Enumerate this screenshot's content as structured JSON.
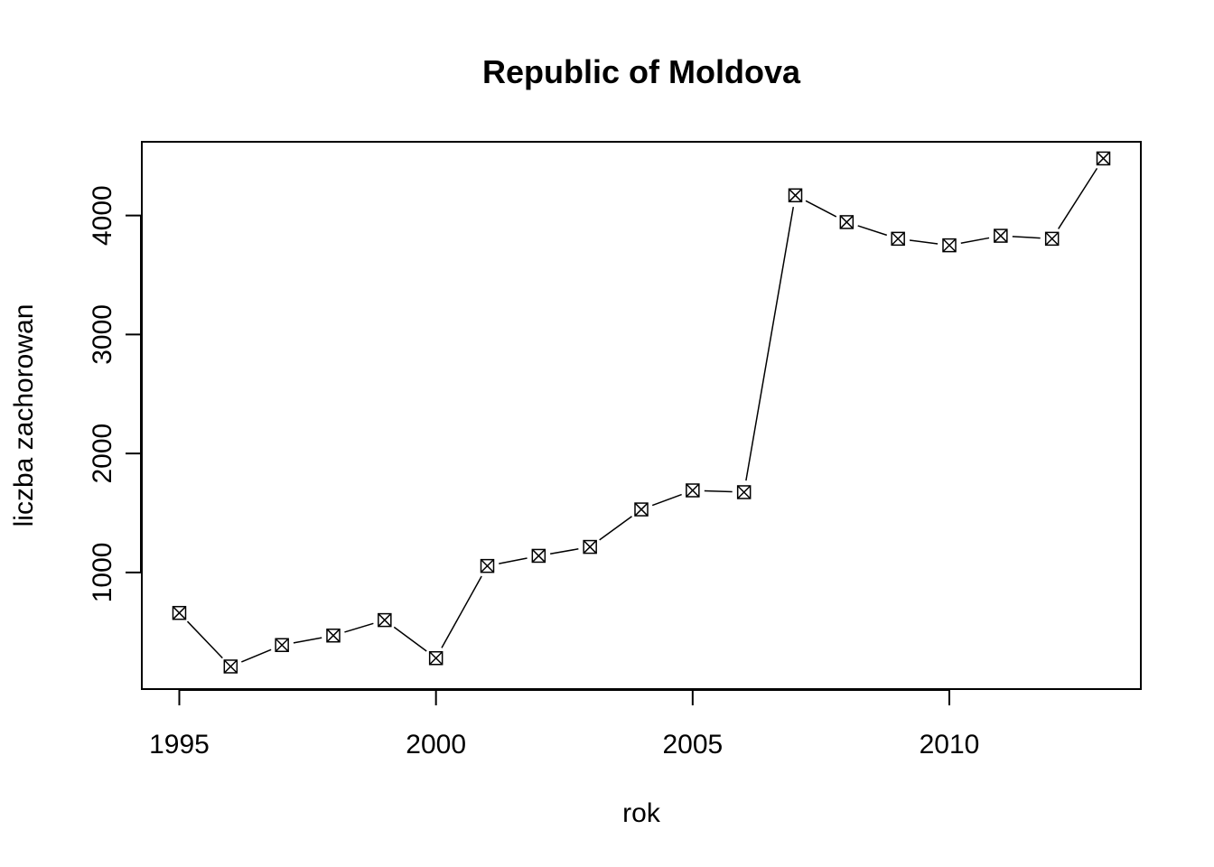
{
  "chart_data": {
    "type": "line",
    "title": "Republic of Moldova",
    "xlabel": "rok",
    "ylabel": "liczba zachorowan",
    "x": [
      1995,
      1996,
      1997,
      1998,
      1999,
      2000,
      2001,
      2002,
      2003,
      2004,
      2005,
      2006,
      2007,
      2008,
      2009,
      2010,
      2011,
      2012,
      2013
    ],
    "series": [
      {
        "values": [
          660,
          210,
          390,
          470,
          600,
          280,
          1055,
          1140,
          1215,
          1530,
          1690,
          1675,
          4170,
          3945,
          3805,
          3750,
          3830,
          3805,
          4480
        ]
      }
    ],
    "xlim": [
      1994.27,
      2013.73
    ],
    "ylim": [
      20,
      4620
    ],
    "xticks": [
      1995,
      2000,
      2005,
      2010
    ],
    "yticks": [
      1000,
      2000,
      3000,
      4000
    ],
    "marker": "boxed-x",
    "line_style": "gapped",
    "grid": false,
    "legend": "none"
  }
}
